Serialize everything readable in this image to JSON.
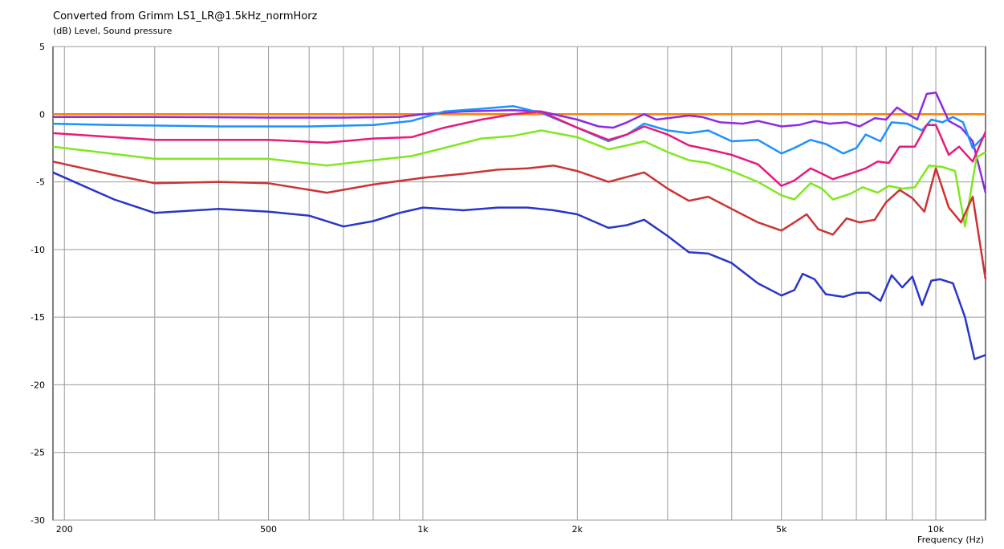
{
  "chart_data": {
    "type": "line",
    "title": "Converted from Grimm LS1_LR@1.5kHz_normHorz",
    "ylabel": "(dB)  Level, Sound pressure",
    "xlabel": "Frequency (Hz)",
    "xscale": "log",
    "xlim": [
      190,
      12500
    ],
    "ylim": [
      -30,
      5
    ],
    "grid": true,
    "x_ticks": [
      {
        "value": 200,
        "label": "200"
      },
      {
        "value": 500,
        "label": "500"
      },
      {
        "value": 1000,
        "label": "1k"
      },
      {
        "value": 2000,
        "label": "2k"
      },
      {
        "value": 5000,
        "label": "5k"
      },
      {
        "value": 10000,
        "label": "10k"
      }
    ],
    "y_ticks": [
      5,
      0,
      -5,
      -10,
      -15,
      -20,
      -25,
      -30
    ],
    "series": [
      {
        "color": "#ff8000",
        "points": [
          [
            190,
            0
          ],
          [
            12500,
            0
          ]
        ]
      },
      {
        "color": "#8b2be2",
        "points": [
          [
            190,
            -0.2
          ],
          [
            300,
            -0.2
          ],
          [
            500,
            -0.25
          ],
          [
            700,
            -0.25
          ],
          [
            900,
            -0.2
          ],
          [
            1000,
            0
          ],
          [
            1200,
            0.2
          ],
          [
            1500,
            0.3
          ],
          [
            1700,
            0.2
          ],
          [
            2000,
            -0.4
          ],
          [
            2200,
            -0.9
          ],
          [
            2350,
            -1.0
          ],
          [
            2500,
            -0.6
          ],
          [
            2700,
            0
          ],
          [
            2850,
            -0.4
          ],
          [
            3000,
            -0.3
          ],
          [
            3300,
            -0.1
          ],
          [
            3500,
            -0.2
          ],
          [
            3800,
            -0.6
          ],
          [
            4200,
            -0.7
          ],
          [
            4500,
            -0.5
          ],
          [
            5000,
            -0.9
          ],
          [
            5400,
            -0.8
          ],
          [
            5800,
            -0.5
          ],
          [
            6200,
            -0.7
          ],
          [
            6700,
            -0.6
          ],
          [
            7100,
            -0.9
          ],
          [
            7600,
            -0.3
          ],
          [
            8000,
            -0.4
          ],
          [
            8400,
            0.5
          ],
          [
            8800,
            0
          ],
          [
            9200,
            -0.4
          ],
          [
            9600,
            1.5
          ],
          [
            10000,
            1.6
          ],
          [
            10600,
            -0.5
          ],
          [
            11200,
            -1.0
          ],
          [
            11800,
            -2.0
          ],
          [
            12500,
            -5.8
          ]
        ]
      },
      {
        "color": "#1e90ff",
        "points": [
          [
            190,
            -0.7
          ],
          [
            250,
            -0.8
          ],
          [
            400,
            -0.9
          ],
          [
            600,
            -0.9
          ],
          [
            800,
            -0.8
          ],
          [
            950,
            -0.5
          ],
          [
            1100,
            0.2
          ],
          [
            1300,
            0.4
          ],
          [
            1500,
            0.6
          ],
          [
            1700,
            0.1
          ],
          [
            2000,
            -1.0
          ],
          [
            2300,
            -2.0
          ],
          [
            2500,
            -1.5
          ],
          [
            2700,
            -0.7
          ],
          [
            3000,
            -1.2
          ],
          [
            3300,
            -1.4
          ],
          [
            3600,
            -1.2
          ],
          [
            4000,
            -2.0
          ],
          [
            4500,
            -1.9
          ],
          [
            5000,
            -2.9
          ],
          [
            5300,
            -2.5
          ],
          [
            5700,
            -1.9
          ],
          [
            6100,
            -2.2
          ],
          [
            6600,
            -2.9
          ],
          [
            7000,
            -2.5
          ],
          [
            7300,
            -1.5
          ],
          [
            7800,
            -2.0
          ],
          [
            8200,
            -0.6
          ],
          [
            8800,
            -0.7
          ],
          [
            9400,
            -1.2
          ],
          [
            9800,
            -0.4
          ],
          [
            10300,
            -0.6
          ],
          [
            10800,
            -0.2
          ],
          [
            11300,
            -0.6
          ],
          [
            11800,
            -2.5
          ],
          [
            12500,
            -1.5
          ]
        ]
      },
      {
        "color": "#e8197c",
        "points": [
          [
            190,
            -1.4
          ],
          [
            300,
            -1.9
          ],
          [
            500,
            -1.9
          ],
          [
            650,
            -2.1
          ],
          [
            800,
            -1.8
          ],
          [
            950,
            -1.7
          ],
          [
            1100,
            -1.0
          ],
          [
            1300,
            -0.4
          ],
          [
            1500,
            0
          ],
          [
            1700,
            0.2
          ],
          [
            2000,
            -1.0
          ],
          [
            2300,
            -1.9
          ],
          [
            2500,
            -1.5
          ],
          [
            2700,
            -0.9
          ],
          [
            3000,
            -1.5
          ],
          [
            3300,
            -2.3
          ],
          [
            3600,
            -2.6
          ],
          [
            4000,
            -3.0
          ],
          [
            4500,
            -3.7
          ],
          [
            5000,
            -5.3
          ],
          [
            5300,
            -4.9
          ],
          [
            5700,
            -4.0
          ],
          [
            6000,
            -4.4
          ],
          [
            6300,
            -4.8
          ],
          [
            6800,
            -4.4
          ],
          [
            7300,
            -4.0
          ],
          [
            7700,
            -3.5
          ],
          [
            8100,
            -3.6
          ],
          [
            8500,
            -2.4
          ],
          [
            9100,
            -2.4
          ],
          [
            9600,
            -0.8
          ],
          [
            10000,
            -0.8
          ],
          [
            10600,
            -3.0
          ],
          [
            11100,
            -2.4
          ],
          [
            11800,
            -3.5
          ],
          [
            12500,
            -1.3
          ]
        ]
      },
      {
        "color": "#7ee81e",
        "points": [
          [
            190,
            -2.4
          ],
          [
            300,
            -3.3
          ],
          [
            500,
            -3.3
          ],
          [
            650,
            -3.8
          ],
          [
            800,
            -3.4
          ],
          [
            950,
            -3.1
          ],
          [
            1100,
            -2.5
          ],
          [
            1300,
            -1.8
          ],
          [
            1500,
            -1.6
          ],
          [
            1700,
            -1.2
          ],
          [
            2000,
            -1.7
          ],
          [
            2300,
            -2.6
          ],
          [
            2500,
            -2.3
          ],
          [
            2700,
            -2.0
          ],
          [
            3000,
            -2.8
          ],
          [
            3300,
            -3.4
          ],
          [
            3600,
            -3.6
          ],
          [
            4000,
            -4.2
          ],
          [
            4500,
            -5.0
          ],
          [
            5000,
            -6.0
          ],
          [
            5300,
            -6.3
          ],
          [
            5700,
            -5.1
          ],
          [
            6000,
            -5.5
          ],
          [
            6300,
            -6.3
          ],
          [
            6800,
            -5.9
          ],
          [
            7200,
            -5.4
          ],
          [
            7700,
            -5.8
          ],
          [
            8100,
            -5.3
          ],
          [
            8600,
            -5.5
          ],
          [
            9100,
            -5.4
          ],
          [
            9700,
            -3.8
          ],
          [
            10300,
            -3.9
          ],
          [
            10900,
            -4.2
          ],
          [
            11400,
            -8.3
          ],
          [
            12000,
            -3.2
          ],
          [
            12500,
            -2.8
          ]
        ]
      },
      {
        "color": "#cc3333",
        "points": [
          [
            190,
            -3.5
          ],
          [
            250,
            -4.5
          ],
          [
            300,
            -5.1
          ],
          [
            400,
            -5.0
          ],
          [
            500,
            -5.1
          ],
          [
            650,
            -5.8
          ],
          [
            800,
            -5.2
          ],
          [
            1000,
            -4.7
          ],
          [
            1200,
            -4.4
          ],
          [
            1400,
            -4.1
          ],
          [
            1600,
            -4.0
          ],
          [
            1800,
            -3.8
          ],
          [
            2000,
            -4.2
          ],
          [
            2300,
            -5.0
          ],
          [
            2700,
            -4.3
          ],
          [
            3000,
            -5.5
          ],
          [
            3300,
            -6.4
          ],
          [
            3600,
            -6.1
          ],
          [
            4000,
            -7.0
          ],
          [
            4500,
            -8.0
          ],
          [
            5000,
            -8.6
          ],
          [
            5300,
            -8.0
          ],
          [
            5600,
            -7.4
          ],
          [
            5900,
            -8.5
          ],
          [
            6300,
            -8.9
          ],
          [
            6700,
            -7.7
          ],
          [
            7100,
            -8.0
          ],
          [
            7600,
            -7.8
          ],
          [
            8000,
            -6.5
          ],
          [
            8500,
            -5.6
          ],
          [
            9000,
            -6.2
          ],
          [
            9500,
            -7.2
          ],
          [
            10000,
            -4.0
          ],
          [
            10600,
            -6.9
          ],
          [
            11200,
            -8.0
          ],
          [
            11800,
            -6.1
          ],
          [
            12500,
            -12.2
          ]
        ]
      },
      {
        "color": "#2b35c9",
        "points": [
          [
            190,
            -4.3
          ],
          [
            250,
            -6.3
          ],
          [
            300,
            -7.3
          ],
          [
            400,
            -7.0
          ],
          [
            500,
            -7.2
          ],
          [
            600,
            -7.5
          ],
          [
            700,
            -8.3
          ],
          [
            800,
            -7.9
          ],
          [
            900,
            -7.3
          ],
          [
            1000,
            -6.9
          ],
          [
            1200,
            -7.1
          ],
          [
            1400,
            -6.9
          ],
          [
            1600,
            -6.9
          ],
          [
            1800,
            -7.1
          ],
          [
            2000,
            -7.4
          ],
          [
            2300,
            -8.4
          ],
          [
            2500,
            -8.2
          ],
          [
            2700,
            -7.8
          ],
          [
            3000,
            -9.0
          ],
          [
            3300,
            -10.2
          ],
          [
            3600,
            -10.3
          ],
          [
            4000,
            -11.0
          ],
          [
            4500,
            -12.5
          ],
          [
            5000,
            -13.4
          ],
          [
            5300,
            -13.0
          ],
          [
            5500,
            -11.8
          ],
          [
            5800,
            -12.2
          ],
          [
            6100,
            -13.3
          ],
          [
            6600,
            -13.5
          ],
          [
            7000,
            -13.2
          ],
          [
            7400,
            -13.2
          ],
          [
            7800,
            -13.8
          ],
          [
            8200,
            -11.9
          ],
          [
            8600,
            -12.8
          ],
          [
            9000,
            -12.0
          ],
          [
            9400,
            -14.1
          ],
          [
            9800,
            -12.3
          ],
          [
            10200,
            -12.2
          ],
          [
            10800,
            -12.5
          ],
          [
            11400,
            -15.0
          ],
          [
            11900,
            -18.1
          ],
          [
            12500,
            -17.8
          ]
        ]
      }
    ]
  }
}
